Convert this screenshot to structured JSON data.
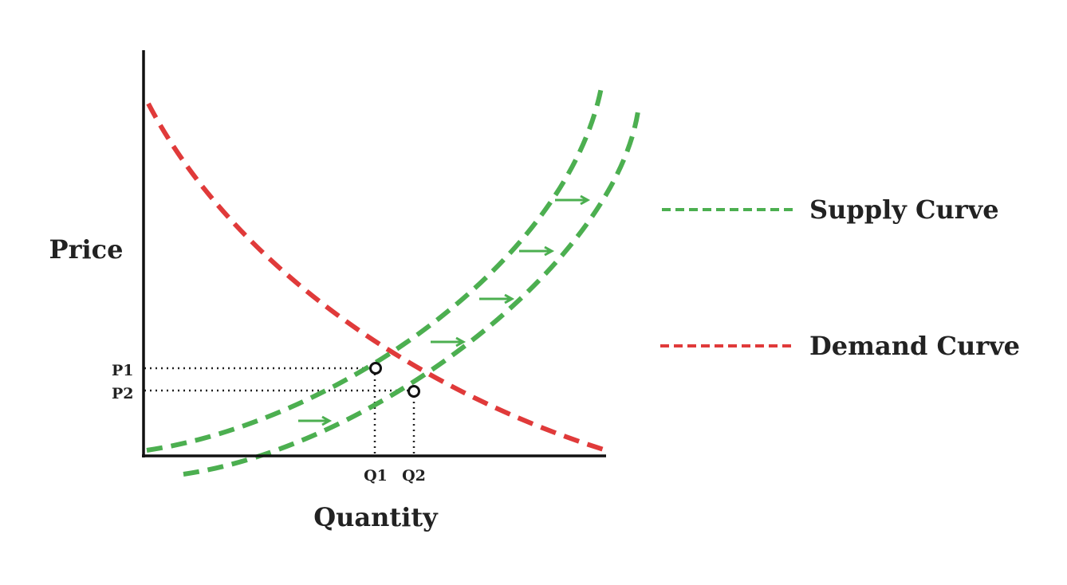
{
  "diagram": {
    "axes": {
      "y_title": "Price",
      "x_title": "Quantity"
    },
    "ticks": {
      "p1": "P1",
      "p2": "P2",
      "q1": "Q1",
      "q2": "Q2"
    },
    "legend": {
      "supply": "Supply Curve",
      "demand": "Demand Curve"
    },
    "colors": {
      "supply": "#4caf50",
      "demand": "#e03a3a",
      "axis": "#111111",
      "guide": "#222222"
    },
    "shift_direction": "right"
  }
}
